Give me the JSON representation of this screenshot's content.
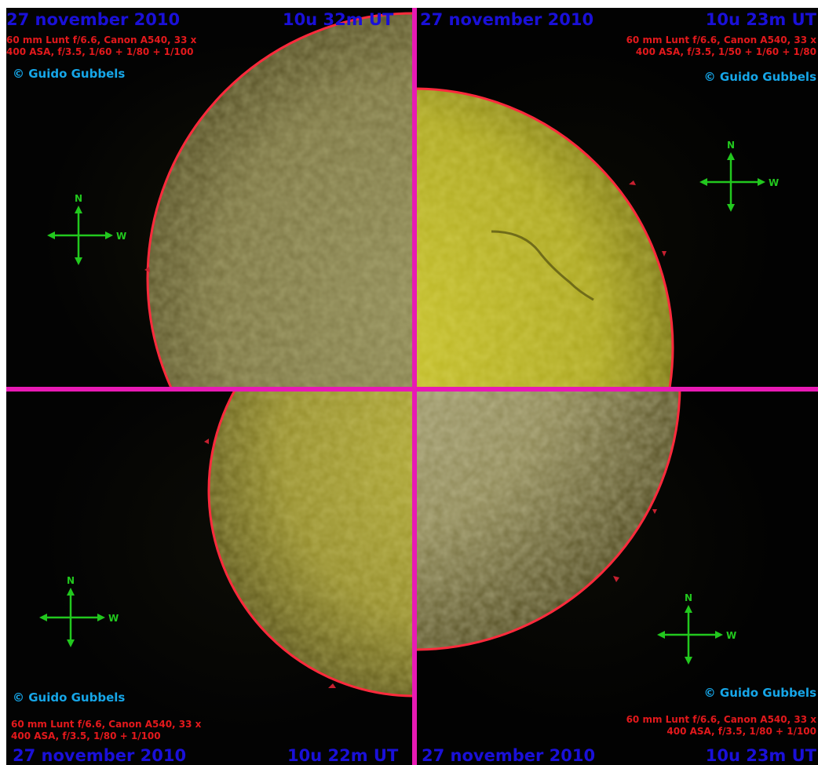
{
  "panels": {
    "top_left": {
      "date": "27 november 2010",
      "time": "10u 32m UT",
      "caption_line1": "60 mm Lunt f/6.6, Canon A540, 33 x",
      "caption_line2": "400 ASA, f/3.5, 1/60 + 1/80 + 1/100",
      "copyright": "© Guido Gubbels"
    },
    "top_right": {
      "date": "27 november 2010",
      "time": "10u 23m UT",
      "caption_line1": "60 mm Lunt f/6.6, Canon A540, 33 x",
      "caption_line2": "400 ASA, f/3.5, 1/50 + 1/60 + 1/80",
      "copyright": "© Guido Gubbels"
    },
    "bottom_left": {
      "date": "27 november 2010",
      "time": "10u 22m UT",
      "caption_line1": "60 mm Lunt f/6.6, Canon A540, 33 x",
      "caption_line2": "400 ASA, f/3.5, 1/80 + 1/100",
      "copyright": "© Guido Gubbels"
    },
    "bottom_right": {
      "date": "27 november 2010",
      "time": "10u 23m UT",
      "caption_line1": "60 mm Lunt f/6.6, Canon A540, 33 x",
      "caption_line2": "400 ASA, f/3.5, 1/80 + 1/100",
      "copyright": "© Guido Gubbels"
    }
  },
  "compass": {
    "north": "N",
    "west": "W"
  },
  "colors": {
    "date_text": "#1a10d8",
    "caption_text": "#e3191c",
    "copyright_text": "#16a6e8",
    "separator": "#e81ab4",
    "compass": "#22c81e",
    "solar_limb": "#ff2a3c"
  }
}
